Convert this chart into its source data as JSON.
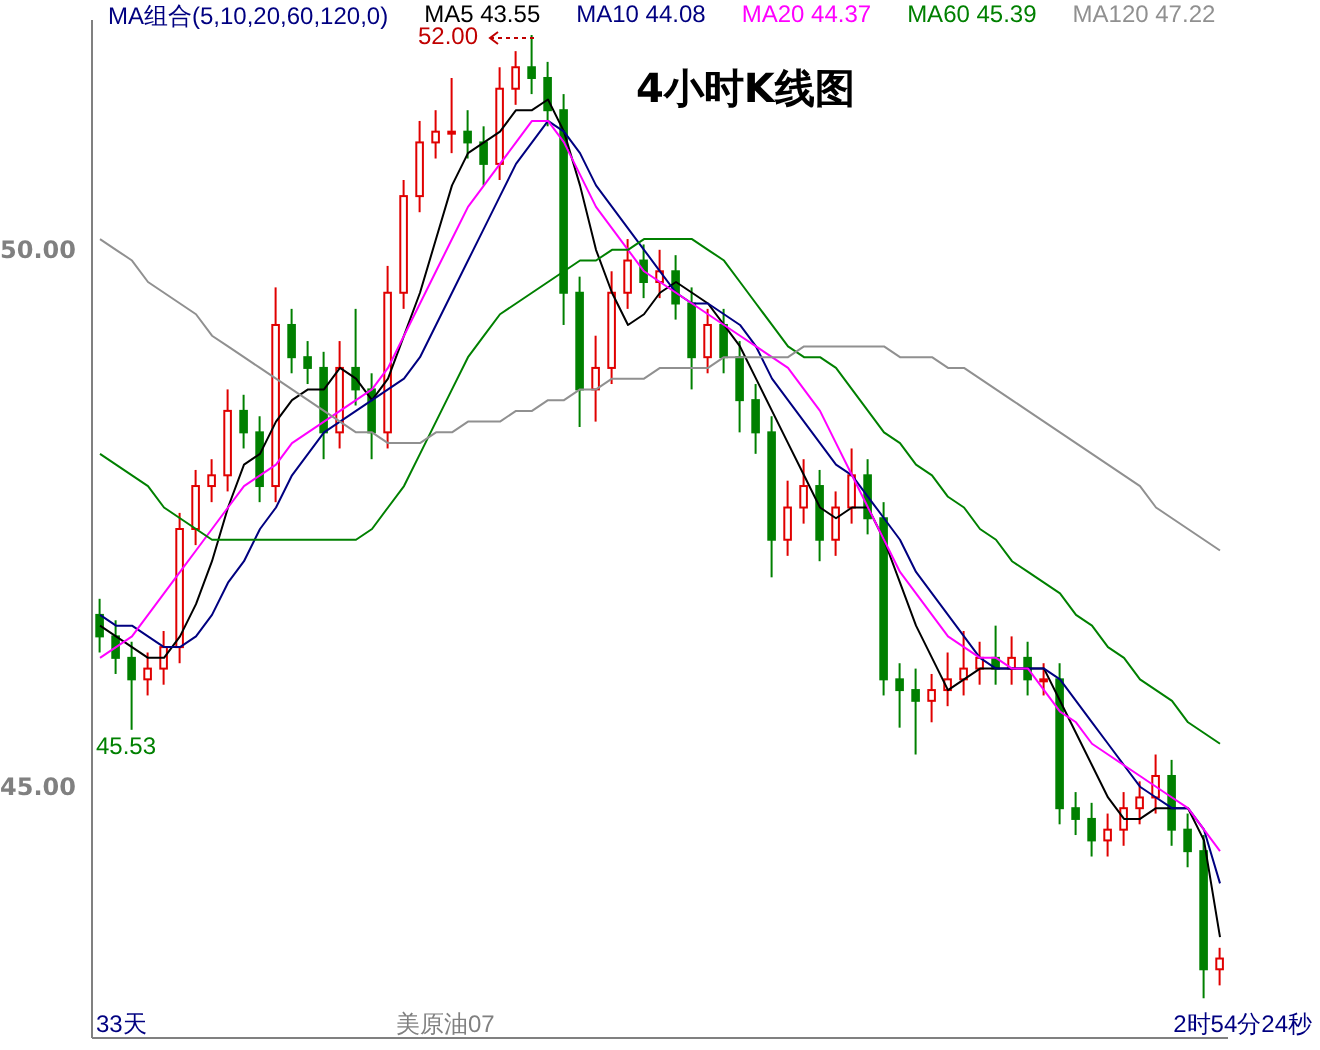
{
  "chart_data": {
    "type": "candlestick",
    "title": "4小时K线图",
    "legend_title": "MA组合(5,10,20,60,120,0)",
    "legend": "top",
    "tick_labels": "y",
    "ylim": [
      42.66,
      52.14
    ],
    "yticks": [
      {
        "value": 50,
        "label": "50.00"
      },
      {
        "value": 45,
        "label": "45.00"
      }
    ],
    "categories": [
      null,
      null,
      null,
      null,
      null,
      null,
      null,
      null,
      null,
      null,
      null,
      null,
      null,
      null,
      null,
      null,
      null,
      null,
      null,
      null,
      null,
      null,
      null,
      null,
      null,
      null,
      null,
      null,
      null,
      null,
      null,
      null,
      null,
      null,
      null,
      null,
      null,
      null,
      null,
      null,
      null,
      null,
      null,
      null,
      null,
      null,
      null,
      null,
      null,
      null,
      null,
      null,
      null,
      null,
      null,
      null,
      null,
      null,
      null,
      null,
      null,
      null,
      null,
      null,
      null,
      null,
      null,
      null,
      null,
      null,
      null
    ],
    "ohlc": [
      [
        46.6,
        46.75,
        46.25,
        46.4
      ],
      [
        46.4,
        46.55,
        46.05,
        46.2
      ],
      [
        46.2,
        46.35,
        45.53,
        46.0
      ],
      [
        46.0,
        46.25,
        45.85,
        46.1
      ],
      [
        46.1,
        46.45,
        45.95,
        46.3
      ],
      [
        46.3,
        47.55,
        46.15,
        47.4
      ],
      [
        47.4,
        47.95,
        47.25,
        47.8
      ],
      [
        47.8,
        48.05,
        47.65,
        47.9
      ],
      [
        47.9,
        48.7,
        47.75,
        48.5
      ],
      [
        48.5,
        48.65,
        48.15,
        48.3
      ],
      [
        48.3,
        48.45,
        47.65,
        47.8
      ],
      [
        47.8,
        49.65,
        47.65,
        49.3
      ],
      [
        49.3,
        49.45,
        48.85,
        49.0
      ],
      [
        49.0,
        49.15,
        48.75,
        48.9
      ],
      [
        48.9,
        49.05,
        48.05,
        48.3
      ],
      [
        48.3,
        49.15,
        48.15,
        48.9
      ],
      [
        48.9,
        49.45,
        48.55,
        48.7
      ],
      [
        48.7,
        48.85,
        48.05,
        48.3
      ],
      [
        48.3,
        49.85,
        48.15,
        49.6
      ],
      [
        49.6,
        50.65,
        49.45,
        50.5
      ],
      [
        50.5,
        51.2,
        50.35,
        51.0
      ],
      [
        51.0,
        51.3,
        50.85,
        51.1
      ],
      [
        51.1,
        51.6,
        50.9,
        51.1
      ],
      [
        51.1,
        51.3,
        50.85,
        51.0
      ],
      [
        51.0,
        51.15,
        50.6,
        50.8
      ],
      [
        50.8,
        51.7,
        50.65,
        51.5
      ],
      [
        51.5,
        51.85,
        51.35,
        51.7
      ],
      [
        51.7,
        52.0,
        51.45,
        51.6
      ],
      [
        51.6,
        51.75,
        51.15,
        51.3
      ],
      [
        51.3,
        51.45,
        49.3,
        49.6
      ],
      [
        49.6,
        49.75,
        48.35,
        48.7
      ],
      [
        48.7,
        49.2,
        48.4,
        48.9
      ],
      [
        48.9,
        49.8,
        48.75,
        49.6
      ],
      [
        49.6,
        50.1,
        49.45,
        49.9
      ],
      [
        49.9,
        50.05,
        49.55,
        49.7
      ],
      [
        49.7,
        50.0,
        49.55,
        49.8
      ],
      [
        49.8,
        49.95,
        49.35,
        49.5
      ],
      [
        49.5,
        49.65,
        48.7,
        49.0
      ],
      [
        49.0,
        49.45,
        48.85,
        49.3
      ],
      [
        49.3,
        49.45,
        48.85,
        49.0
      ],
      [
        49.0,
        49.15,
        48.3,
        48.6
      ],
      [
        48.6,
        48.75,
        48.1,
        48.3
      ],
      [
        48.3,
        48.45,
        46.95,
        47.3
      ],
      [
        47.3,
        47.85,
        47.15,
        47.6
      ],
      [
        47.6,
        48.05,
        47.45,
        47.8
      ],
      [
        47.8,
        47.95,
        47.1,
        47.3
      ],
      [
        47.3,
        47.75,
        47.15,
        47.6
      ],
      [
        47.6,
        48.15,
        47.45,
        47.9
      ],
      [
        47.9,
        48.05,
        47.35,
        47.5
      ],
      [
        47.5,
        47.65,
        45.85,
        46.0
      ],
      [
        46.0,
        46.15,
        45.55,
        45.9
      ],
      [
        45.9,
        46.1,
        45.3,
        45.8
      ],
      [
        45.8,
        46.05,
        45.6,
        45.9
      ],
      [
        45.9,
        46.25,
        45.75,
        46.0
      ],
      [
        46.0,
        46.45,
        45.85,
        46.1
      ],
      [
        46.1,
        46.35,
        45.95,
        46.2
      ],
      [
        46.2,
        46.5,
        45.95,
        46.1
      ],
      [
        46.1,
        46.4,
        45.95,
        46.2
      ],
      [
        46.2,
        46.35,
        45.85,
        46.0
      ],
      [
        46.0,
        46.15,
        45.85,
        46.0
      ],
      [
        46.0,
        46.15,
        44.65,
        44.8
      ],
      [
        44.8,
        44.95,
        44.55,
        44.7
      ],
      [
        44.7,
        44.85,
        44.35,
        44.5
      ],
      [
        44.5,
        44.75,
        44.35,
        44.6
      ],
      [
        44.6,
        44.95,
        44.45,
        44.8
      ],
      [
        44.8,
        45.05,
        44.65,
        44.9
      ],
      [
        44.9,
        45.3,
        44.75,
        45.1
      ],
      [
        45.1,
        45.25,
        44.45,
        44.6
      ],
      [
        44.6,
        44.75,
        44.25,
        44.4
      ],
      [
        44.4,
        44.55,
        43.03,
        43.3
      ],
      [
        43.3,
        43.5,
        43.15,
        43.4
      ]
    ],
    "colors": [
      "#008000",
      "#008000",
      "#008000",
      "#e00000",
      "#e00000",
      "#e00000",
      "#e00000",
      "#e00000",
      "#e00000",
      "#008000",
      "#008000",
      "#e00000",
      "#008000",
      "#008000",
      "#008000",
      "#e00000",
      "#008000",
      "#008000",
      "#e00000",
      "#e00000",
      "#e00000",
      "#e00000",
      "#e00000",
      "#008000",
      "#008000",
      "#e00000",
      "#e00000",
      "#008000",
      "#008000",
      "#008000",
      "#008000",
      "#e00000",
      "#e00000",
      "#e00000",
      "#008000",
      "#e00000",
      "#008000",
      "#008000",
      "#e00000",
      "#008000",
      "#008000",
      "#008000",
      "#008000",
      "#e00000",
      "#e00000",
      "#008000",
      "#e00000",
      "#e00000",
      "#008000",
      "#008000",
      "#008000",
      "#008000",
      "#e00000",
      "#e00000",
      "#e00000",
      "#e00000",
      "#008000",
      "#e00000",
      "#008000",
      "#e00000",
      "#008000",
      "#008000",
      "#008000",
      "#e00000",
      "#e00000",
      "#e00000",
      "#e00000",
      "#008000",
      "#008000",
      "#008000",
      "#e00000"
    ],
    "series": [
      {
        "type": "line",
        "name": "MA5 43.55",
        "color": "#000000",
        "values": [
          46.5,
          46.4,
          46.3,
          46.2,
          46.2,
          46.4,
          46.7,
          47.1,
          47.6,
          48.0,
          48.1,
          48.4,
          48.6,
          48.7,
          48.7,
          48.9,
          48.8,
          48.6,
          48.8,
          49.2,
          49.6,
          50.1,
          50.6,
          50.9,
          51.0,
          51.1,
          51.3,
          51.3,
          51.4,
          51.1,
          50.6,
          50.0,
          49.6,
          49.3,
          49.4,
          49.6,
          49.7,
          49.6,
          49.5,
          49.3,
          49.1,
          48.8,
          48.5,
          48.2,
          47.9,
          47.6,
          47.5,
          47.6,
          47.6,
          47.3,
          46.9,
          46.5,
          46.2,
          45.9,
          46.0,
          46.1,
          46.1,
          46.1,
          46.1,
          46.1,
          45.8,
          45.5,
          45.2,
          44.9,
          44.7,
          44.7,
          44.8,
          44.8,
          44.8,
          44.5,
          43.6
        ]
      },
      {
        "type": "line",
        "name": "MA10 44.08",
        "color": "#000080",
        "values": [
          46.6,
          46.5,
          46.5,
          46.4,
          46.3,
          46.3,
          46.4,
          46.6,
          46.9,
          47.1,
          47.4,
          47.6,
          47.9,
          48.1,
          48.3,
          48.4,
          48.5,
          48.6,
          48.7,
          48.8,
          49.0,
          49.3,
          49.6,
          49.9,
          50.2,
          50.5,
          50.8,
          51.0,
          51.2,
          51.1,
          50.9,
          50.6,
          50.4,
          50.2,
          50.0,
          49.8,
          49.6,
          49.5,
          49.5,
          49.4,
          49.3,
          49.1,
          48.8,
          48.6,
          48.4,
          48.2,
          48.0,
          47.9,
          47.7,
          47.5,
          47.3,
          47.0,
          46.8,
          46.6,
          46.4,
          46.2,
          46.1,
          46.1,
          46.1,
          46.1,
          46.0,
          45.8,
          45.6,
          45.4,
          45.2,
          45.0,
          44.9,
          44.8,
          44.8,
          44.6,
          44.1
        ]
      },
      {
        "type": "line",
        "name": "MA20 44.37",
        "color": "#ff00ff",
        "values": [
          46.2,
          46.3,
          46.4,
          46.6,
          46.8,
          47.0,
          47.2,
          47.4,
          47.6,
          47.8,
          47.9,
          48.0,
          48.2,
          48.3,
          48.4,
          48.5,
          48.6,
          48.7,
          48.9,
          49.2,
          49.5,
          49.8,
          50.1,
          50.4,
          50.6,
          50.8,
          51.0,
          51.2,
          51.2,
          51.0,
          50.7,
          50.4,
          50.2,
          50.0,
          49.8,
          49.7,
          49.6,
          49.5,
          49.4,
          49.3,
          49.2,
          49.1,
          49.0,
          48.9,
          48.7,
          48.5,
          48.2,
          47.9,
          47.6,
          47.3,
          47.0,
          46.8,
          46.6,
          46.4,
          46.3,
          46.2,
          46.2,
          46.1,
          46.1,
          45.9,
          45.7,
          45.6,
          45.4,
          45.3,
          45.2,
          45.1,
          45.0,
          44.9,
          44.8,
          44.6,
          44.4
        ]
      },
      {
        "type": "line",
        "name": "MA60 45.39",
        "color": "#008000",
        "values": [
          48.1,
          48.0,
          47.9,
          47.8,
          47.6,
          47.5,
          47.4,
          47.3,
          47.3,
          47.3,
          47.3,
          47.3,
          47.3,
          47.3,
          47.3,
          47.3,
          47.3,
          47.4,
          47.6,
          47.8,
          48.1,
          48.4,
          48.7,
          49.0,
          49.2,
          49.4,
          49.5,
          49.6,
          49.7,
          49.8,
          49.9,
          49.9,
          50.0,
          50.0,
          50.1,
          50.1,
          50.1,
          50.1,
          50.0,
          49.9,
          49.7,
          49.5,
          49.3,
          49.1,
          49.0,
          49.0,
          48.9,
          48.7,
          48.5,
          48.3,
          48.2,
          48.0,
          47.9,
          47.7,
          47.6,
          47.4,
          47.3,
          47.1,
          47.0,
          46.9,
          46.8,
          46.6,
          46.5,
          46.3,
          46.2,
          46.0,
          45.9,
          45.8,
          45.6,
          45.5,
          45.4
        ]
      },
      {
        "type": "line",
        "name": "MA120 47.22",
        "color": "#909090",
        "values": [
          50.1,
          50.0,
          49.9,
          49.7,
          49.6,
          49.5,
          49.4,
          49.2,
          49.1,
          49.0,
          48.9,
          48.8,
          48.7,
          48.6,
          48.5,
          48.4,
          48.3,
          48.3,
          48.2,
          48.2,
          48.2,
          48.3,
          48.3,
          48.4,
          48.4,
          48.4,
          48.5,
          48.5,
          48.6,
          48.6,
          48.7,
          48.7,
          48.8,
          48.8,
          48.8,
          48.9,
          48.9,
          48.9,
          48.9,
          49.0,
          49.0,
          49.0,
          49.0,
          49.0,
          49.1,
          49.1,
          49.1,
          49.1,
          49.1,
          49.1,
          49.0,
          49.0,
          49.0,
          48.9,
          48.9,
          48.8,
          48.7,
          48.6,
          48.5,
          48.4,
          48.3,
          48.2,
          48.1,
          48.0,
          47.9,
          47.8,
          47.6,
          47.5,
          47.4,
          47.3,
          47.2
        ]
      }
    ],
    "annotations": [
      "52.00",
      "45.53",
      "33天",
      "美原油07",
      "2时54分24秒"
    ]
  }
}
